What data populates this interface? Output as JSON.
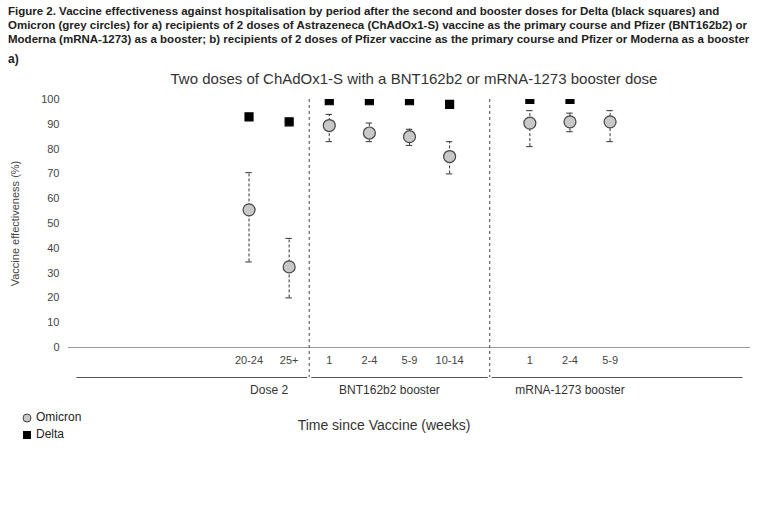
{
  "chart_data": {
    "type": "scatter",
    "caption": "Figure 2. Vaccine effectiveness against hospitalisation by period after the second and booster doses for Delta (black squares) and Omicron (grey circles) for a) recipients of 2 doses of Astrazeneca (ChAdOx1-S) vaccine as the primary course and Pfizer (BNT162b2) or Moderna (mRNA-1273) as a booster; b) recipients of 2 doses of Pfizer vaccine as the primary course and Pfizer or Moderna as a booster",
    "panel_label": "a)",
    "title": "Two doses of ChAdOx1-S with a BNT162b2 or mRNA-1273 booster dose",
    "x_label": "Time since Vaccine (weeks)",
    "y_label": "Vaccine effectiveness (%)",
    "categories": [
      null,
      null,
      null,
      null,
      "20-24",
      "25+",
      "1",
      "2-4",
      "5-9",
      "10-14",
      null,
      "1",
      "2-4",
      "5-9",
      null,
      null,
      null
    ],
    "group": [
      null,
      null,
      null,
      null,
      "Dose 2",
      "Dose 2",
      "BNT162b2 booster",
      "BNT162b2 booster",
      "BNT162b2 booster",
      "BNT162b2 booster",
      null,
      "mRNA-1273 booster",
      "mRNA-1273 booster",
      "mRNA-1273 booster",
      null,
      null,
      null
    ],
    "series": [
      {
        "name": "Omicron",
        "color": "#c8c8c8",
        "marker": "circle",
        "values": [
          null,
          null,
          null,
          null,
          55.5,
          32.5,
          89.5,
          86.5,
          85,
          77,
          null,
          90.5,
          91,
          91,
          null,
          null,
          null
        ],
        "lower": [
          null,
          null,
          null,
          null,
          34.5,
          20,
          83,
          83,
          81.5,
          70,
          null,
          81,
          87,
          83,
          null,
          null,
          null
        ],
        "upper": [
          null,
          null,
          null,
          null,
          70.5,
          44,
          94,
          90.5,
          88,
          83,
          null,
          95.5,
          94.5,
          95.5,
          null,
          null,
          null
        ]
      },
      {
        "name": "Delta",
        "color": "#000000",
        "marker": "square",
        "values": [
          null,
          null,
          null,
          null,
          93,
          91,
          99.5,
          99.5,
          99.5,
          98,
          null,
          100,
          100,
          null,
          null,
          null,
          null
        ]
      }
    ],
    "ylim": [
      0,
      100
    ],
    "yticks": [
      0,
      10,
      20,
      30,
      40,
      50,
      60,
      70,
      80,
      90,
      100
    ],
    "grid": false,
    "legend": "bottom-left"
  }
}
